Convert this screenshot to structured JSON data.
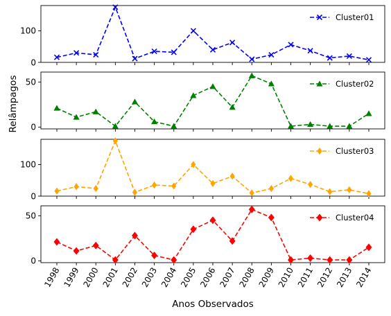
{
  "chart_data": {
    "type": "line",
    "xlabel": "Anos Observados",
    "ylabel": "Relâmpagos",
    "categories": [
      "1998",
      "1999",
      "2000",
      "2001",
      "2002",
      "2003",
      "2004",
      "2005",
      "2006",
      "2007",
      "2008",
      "2009",
      "2010",
      "2011",
      "2012",
      "2013",
      "2014"
    ],
    "legend_position": "top-right",
    "grid": false,
    "panels": [
      {
        "name": "Cluster01",
        "color": "#0000ff",
        "marker": "x",
        "line_style": "dashed",
        "ylim": [
          0,
          180
        ],
        "yticks": [
          0,
          100
        ],
        "values": [
          16,
          30,
          24,
          175,
          12,
          35,
          32,
          100,
          40,
          63,
          10,
          24,
          56,
          37,
          14,
          20,
          8
        ]
      },
      {
        "name": "Cluster02",
        "color": "#008000",
        "marker": "triangle",
        "line_style": "dashed",
        "ylim": [
          -2,
          61
        ],
        "yticks": [
          0,
          50
        ],
        "values": [
          21,
          11,
          17,
          1,
          28,
          6,
          1,
          35,
          45,
          22,
          57,
          48,
          1,
          3,
          1,
          1,
          15
        ]
      },
      {
        "name": "Cluster03",
        "color": "#ffa500",
        "marker": "thin-diamond",
        "line_style": "dashed",
        "ylim": [
          0,
          180
        ],
        "yticks": [
          0,
          100
        ],
        "values": [
          16,
          30,
          24,
          175,
          12,
          35,
          32,
          100,
          40,
          63,
          10,
          24,
          56,
          37,
          14,
          20,
          8
        ]
      },
      {
        "name": "Cluster04",
        "color": "#ff0000",
        "marker": "diamond",
        "line_style": "dashed",
        "ylim": [
          -2,
          61
        ],
        "yticks": [
          0,
          50
        ],
        "values": [
          21,
          11,
          17,
          1,
          28,
          6,
          1,
          35,
          45,
          22,
          57,
          48,
          1,
          3,
          1,
          1,
          15
        ]
      }
    ]
  }
}
